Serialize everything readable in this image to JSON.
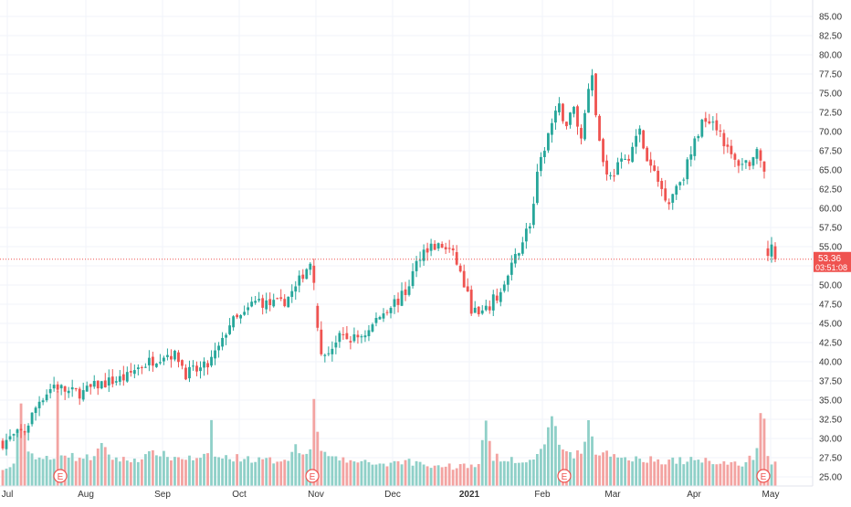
{
  "chart_data": {
    "type": "candlestick",
    "y_axis_side": "right",
    "ylim": [
      24.0,
      86.5
    ],
    "y_ticks": [
      "25.00",
      "27.50",
      "30.00",
      "32.50",
      "35.00",
      "37.50",
      "40.00",
      "42.50",
      "45.00",
      "47.50",
      "50.00",
      "52.50",
      "55.00",
      "57.50",
      "60.00",
      "62.50",
      "65.00",
      "67.50",
      "70.00",
      "72.50",
      "75.00",
      "77.50",
      "80.00",
      "82.50",
      "85.00"
    ],
    "x_ticks": [
      "Jul",
      "Aug",
      "Sep",
      "Oct",
      "Nov",
      "Dec",
      "2021",
      "Feb",
      "Mar",
      "Apr",
      "May"
    ],
    "last_price": "53.36",
    "countdown": "03:51:08",
    "earnings_marker_label": "E",
    "earnings_markers": 4,
    "colors": {
      "up": "#26a69a",
      "down": "#ef5350",
      "up_volume": "#8fd0c8",
      "down_volume": "#f3a3a1",
      "grid": "#f0f3fa",
      "price_line": "#ef5350"
    },
    "price_anchors": [
      [
        0,
        29.5
      ],
      [
        6,
        31
      ],
      [
        10,
        35
      ],
      [
        14,
        37
      ],
      [
        18,
        36
      ],
      [
        22,
        36
      ],
      [
        26,
        37
      ],
      [
        30,
        37.5
      ],
      [
        34,
        38
      ],
      [
        36,
        39
      ],
      [
        38,
        39.5
      ],
      [
        40,
        40
      ],
      [
        42,
        40.5
      ],
      [
        44,
        41
      ],
      [
        46,
        41
      ],
      [
        48,
        40.5
      ],
      [
        50,
        38.5
      ],
      [
        54,
        39
      ],
      [
        56,
        39.5
      ],
      [
        58,
        41
      ],
      [
        60,
        42.5
      ],
      [
        61,
        44
      ],
      [
        62,
        45
      ],
      [
        66,
        46
      ],
      [
        68,
        47.5
      ],
      [
        70,
        48
      ],
      [
        72,
        47.5
      ],
      [
        74,
        47.5
      ],
      [
        76,
        47.5
      ],
      [
        78,
        48.5
      ],
      [
        80,
        49.5
      ],
      [
        81,
        50.5
      ],
      [
        82,
        51.5
      ],
      [
        84,
        53
      ],
      [
        85,
        51
      ],
      [
        86,
        44
      ],
      [
        87,
        40.5
      ],
      [
        90,
        42
      ],
      [
        92,
        43
      ],
      [
        96,
        43
      ],
      [
        98,
        43.5
      ],
      [
        100,
        44
      ],
      [
        102,
        45.5
      ],
      [
        104,
        46.5
      ],
      [
        106,
        47.5
      ],
      [
        108,
        48
      ],
      [
        110,
        49
      ],
      [
        112,
        51.5
      ],
      [
        114,
        54
      ],
      [
        116,
        55
      ],
      [
        118,
        55
      ],
      [
        120,
        55
      ],
      [
        122,
        54.5
      ],
      [
        124,
        53
      ],
      [
        126,
        50
      ],
      [
        128,
        47
      ],
      [
        130,
        46
      ],
      [
        132,
        46.5
      ],
      [
        134,
        48
      ],
      [
        136,
        49
      ],
      [
        138,
        51
      ],
      [
        140,
        53.5
      ],
      [
        142,
        56
      ],
      [
        144,
        58
      ],
      [
        145,
        60.5
      ],
      [
        146,
        64
      ],
      [
        148,
        68
      ],
      [
        150,
        71
      ],
      [
        152,
        73
      ],
      [
        154,
        71
      ],
      [
        156,
        73
      ],
      [
        158,
        69
      ],
      [
        160,
        76
      ],
      [
        161,
        78
      ],
      [
        162,
        72
      ],
      [
        164,
        66
      ],
      [
        166,
        64
      ],
      [
        168,
        65.5
      ],
      [
        170,
        66
      ],
      [
        172,
        68
      ],
      [
        174,
        70
      ],
      [
        176,
        66
      ],
      [
        178,
        64.5
      ],
      [
        180,
        62.5
      ],
      [
        182,
        61
      ],
      [
        184,
        63
      ],
      [
        186,
        64.5
      ],
      [
        188,
        67
      ],
      [
        190,
        70
      ],
      [
        192,
        72
      ],
      [
        194,
        71.5
      ],
      [
        196,
        70
      ],
      [
        198,
        67.5
      ],
      [
        200,
        66
      ],
      [
        202,
        66
      ],
      [
        204,
        66
      ],
      [
        206,
        67
      ],
      [
        208,
        64
      ],
      [
        209,
        54
      ],
      [
        210,
        55
      ],
      [
        211,
        53.36
      ]
    ],
    "volume_anchors": [
      [
        0,
        2.5
      ],
      [
        3,
        4
      ],
      [
        5,
        14
      ],
      [
        7,
        6
      ],
      [
        10,
        5
      ],
      [
        14,
        4.5
      ],
      [
        15,
        17
      ],
      [
        16,
        6
      ],
      [
        20,
        5
      ],
      [
        24,
        5
      ],
      [
        27,
        7
      ],
      [
        30,
        5
      ],
      [
        34,
        4.5
      ],
      [
        38,
        5
      ],
      [
        42,
        6
      ],
      [
        46,
        5
      ],
      [
        50,
        5
      ],
      [
        54,
        4.5
      ],
      [
        56,
        5.5
      ],
      [
        57,
        12
      ],
      [
        58,
        5
      ],
      [
        62,
        5
      ],
      [
        66,
        5
      ],
      [
        70,
        4.5
      ],
      [
        74,
        4.5
      ],
      [
        78,
        5
      ],
      [
        80,
        7
      ],
      [
        82,
        5.5
      ],
      [
        84,
        7
      ],
      [
        85,
        16
      ],
      [
        86,
        9
      ],
      [
        87,
        6
      ],
      [
        90,
        5
      ],
      [
        94,
        4.5
      ],
      [
        98,
        4
      ],
      [
        102,
        4
      ],
      [
        106,
        4
      ],
      [
        110,
        4.5
      ],
      [
        114,
        4
      ],
      [
        118,
        3.5
      ],
      [
        122,
        3.5
      ],
      [
        126,
        3.5
      ],
      [
        130,
        4
      ],
      [
        132,
        11
      ],
      [
        134,
        5
      ],
      [
        138,
        5
      ],
      [
        142,
        4.5
      ],
      [
        146,
        5
      ],
      [
        148,
        7
      ],
      [
        150,
        13
      ],
      [
        152,
        7
      ],
      [
        156,
        5.5
      ],
      [
        158,
        6
      ],
      [
        160,
        11
      ],
      [
        162,
        6
      ],
      [
        166,
        5.5
      ],
      [
        170,
        5
      ],
      [
        174,
        5
      ],
      [
        178,
        4.5
      ],
      [
        182,
        4.5
      ],
      [
        186,
        4.5
      ],
      [
        190,
        4.5
      ],
      [
        194,
        4.5
      ],
      [
        198,
        4
      ],
      [
        202,
        4
      ],
      [
        205,
        5
      ],
      [
        206,
        7
      ],
      [
        207,
        13
      ],
      [
        208,
        12
      ],
      [
        209,
        5
      ],
      [
        211,
        4
      ]
    ]
  }
}
